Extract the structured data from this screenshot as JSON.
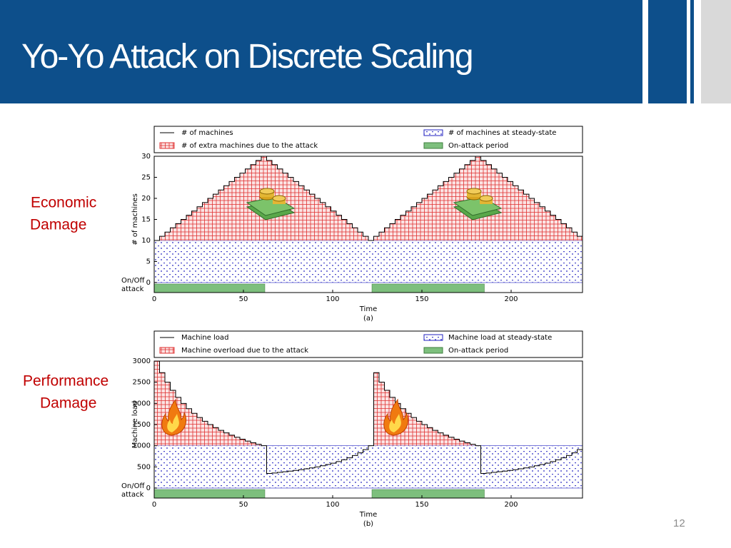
{
  "header": {
    "title": "Yo-Yo Attack on Discrete Scaling"
  },
  "side_labels": [
    [
      "Economic",
      "Damage"
    ],
    [
      "Performance",
      "Damage"
    ]
  ],
  "page_number": "12",
  "chart_data": [
    {
      "type": "line",
      "xlabel": "Time",
      "caption": "(a)",
      "ylabel": "# of machines",
      "strip_label": [
        "On/Off",
        "attack"
      ],
      "x": [
        0,
        3,
        6,
        9,
        12,
        15,
        18,
        21,
        24,
        27,
        30,
        33,
        36,
        39,
        42,
        45,
        48,
        51,
        54,
        57,
        60,
        63,
        66,
        69,
        72,
        75,
        78,
        81,
        84,
        87,
        90,
        93,
        96,
        99,
        102,
        105,
        108,
        111,
        114,
        117,
        120,
        123,
        126,
        129,
        132,
        135,
        138,
        141,
        144,
        147,
        150,
        153,
        156,
        159,
        162,
        165,
        168,
        171,
        174,
        177,
        180,
        183,
        186,
        189,
        192,
        195,
        198,
        201,
        204,
        207,
        210,
        213,
        216,
        219,
        222,
        225,
        228,
        231,
        234,
        237,
        240
      ],
      "series": [
        {
          "name": "# of machines",
          "color": "#000000",
          "values": [
            10,
            11,
            12,
            13,
            14,
            15,
            16,
            17,
            18,
            19,
            20,
            21,
            22,
            23,
            24,
            25,
            26,
            27,
            28,
            29,
            30,
            29,
            28,
            27,
            26,
            25,
            24,
            23,
            22,
            21,
            20,
            19,
            18,
            17,
            16,
            15,
            14,
            13,
            12,
            11,
            10,
            11,
            12,
            13,
            14,
            15,
            16,
            17,
            18,
            19,
            20,
            21,
            22,
            23,
            24,
            25,
            26,
            27,
            28,
            29,
            30,
            29,
            28,
            27,
            26,
            25,
            24,
            23,
            22,
            21,
            20,
            19,
            18,
            17,
            16,
            15,
            14,
            13,
            12,
            11,
            10
          ]
        }
      ],
      "excess": {
        "name": "# of extra machines due to the attack",
        "color": "#e03030"
      },
      "steady_state": {
        "name": "# of machines at steady-state",
        "color": "#2020c0",
        "value": 10
      },
      "attack": {
        "name": "On-attack period",
        "color": "#7dbf7d",
        "periods": [
          [
            0,
            62
          ],
          [
            122,
            185
          ]
        ]
      },
      "xlim": [
        0,
        240
      ],
      "xticks": [
        0,
        50,
        100,
        150,
        200
      ],
      "ylim": [
        0,
        30
      ],
      "yticks": [
        0,
        5,
        10,
        15,
        20,
        25,
        30
      ]
    },
    {
      "type": "line",
      "xlabel": "Time",
      "caption": "(b)",
      "ylabel": "Machine load",
      "strip_label": [
        "On/Off",
        "attack"
      ],
      "x": [
        0,
        3,
        6,
        9,
        12,
        15,
        18,
        21,
        24,
        27,
        30,
        33,
        36,
        39,
        42,
        45,
        48,
        51,
        54,
        57,
        60,
        63,
        66,
        69,
        72,
        75,
        78,
        81,
        84,
        87,
        90,
        93,
        96,
        99,
        102,
        105,
        108,
        111,
        114,
        117,
        120,
        123,
        126,
        129,
        132,
        135,
        138,
        141,
        144,
        147,
        150,
        153,
        156,
        159,
        162,
        165,
        168,
        171,
        174,
        177,
        180,
        183,
        186,
        189,
        192,
        195,
        198,
        201,
        204,
        207,
        210,
        213,
        216,
        219,
        222,
        225,
        228,
        231,
        234,
        237,
        240
      ],
      "series": [
        {
          "name": "Machine load",
          "color": "#000000",
          "values": [
            3000,
            2727,
            2500,
            2308,
            2143,
            2000,
            1875,
            1765,
            1667,
            1579,
            1500,
            1429,
            1364,
            1304,
            1250,
            1200,
            1154,
            1111,
            1071,
            1034,
            1000,
            345,
            357,
            370,
            385,
            400,
            417,
            435,
            455,
            476,
            500,
            526,
            556,
            588,
            625,
            667,
            714,
            769,
            833,
            909,
            1000,
            2727,
            2500,
            2308,
            2143,
            2000,
            1875,
            1765,
            1667,
            1579,
            1500,
            1429,
            1364,
            1304,
            1250,
            1200,
            1154,
            1111,
            1071,
            1034,
            1000,
            345,
            357,
            370,
            385,
            400,
            417,
            435,
            455,
            476,
            500,
            526,
            556,
            588,
            625,
            667,
            714,
            769,
            833,
            909,
            1000
          ]
        }
      ],
      "excess": {
        "name": "Machine overload due to the attack",
        "color": "#e03030"
      },
      "steady_state": {
        "name": "Machine load at steady-state",
        "color": "#2020c0",
        "value": 1000
      },
      "attack": {
        "name": "On-attack period",
        "color": "#7dbf7d",
        "periods": [
          [
            0,
            62
          ],
          [
            122,
            185
          ]
        ]
      },
      "xlim": [
        0,
        240
      ],
      "xticks": [
        0,
        50,
        100,
        150,
        200
      ],
      "ylim": [
        0,
        3000
      ],
      "yticks": [
        0,
        500,
        1000,
        1500,
        2000,
        2500,
        3000
      ]
    }
  ]
}
